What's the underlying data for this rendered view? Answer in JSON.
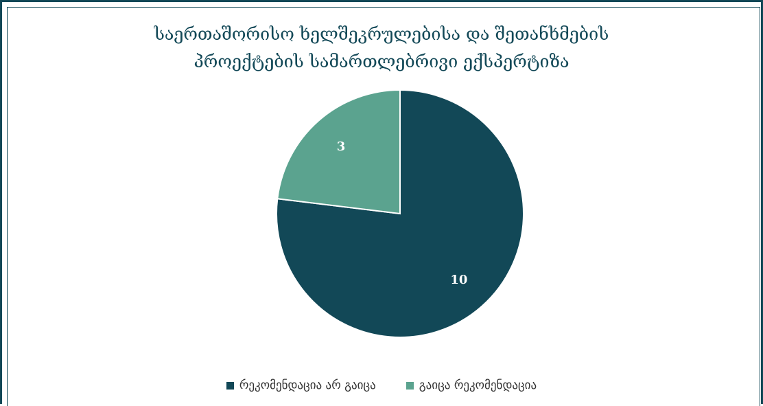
{
  "chart_data": {
    "type": "pie",
    "title_lines": [
      "საერთაშორისო ხელშეკრულებისა და შეთანხმების",
      "პროექტების სამართლებრივი ექსპერტიზა"
    ],
    "slices": [
      {
        "label": "რეკომენდაცია არ გაიცა",
        "value": 10,
        "color": "#124857"
      },
      {
        "label": "გაიცა რეკომენდაცია",
        "value": 3,
        "color": "#5ba38f"
      }
    ],
    "legend_position": "bottom"
  }
}
